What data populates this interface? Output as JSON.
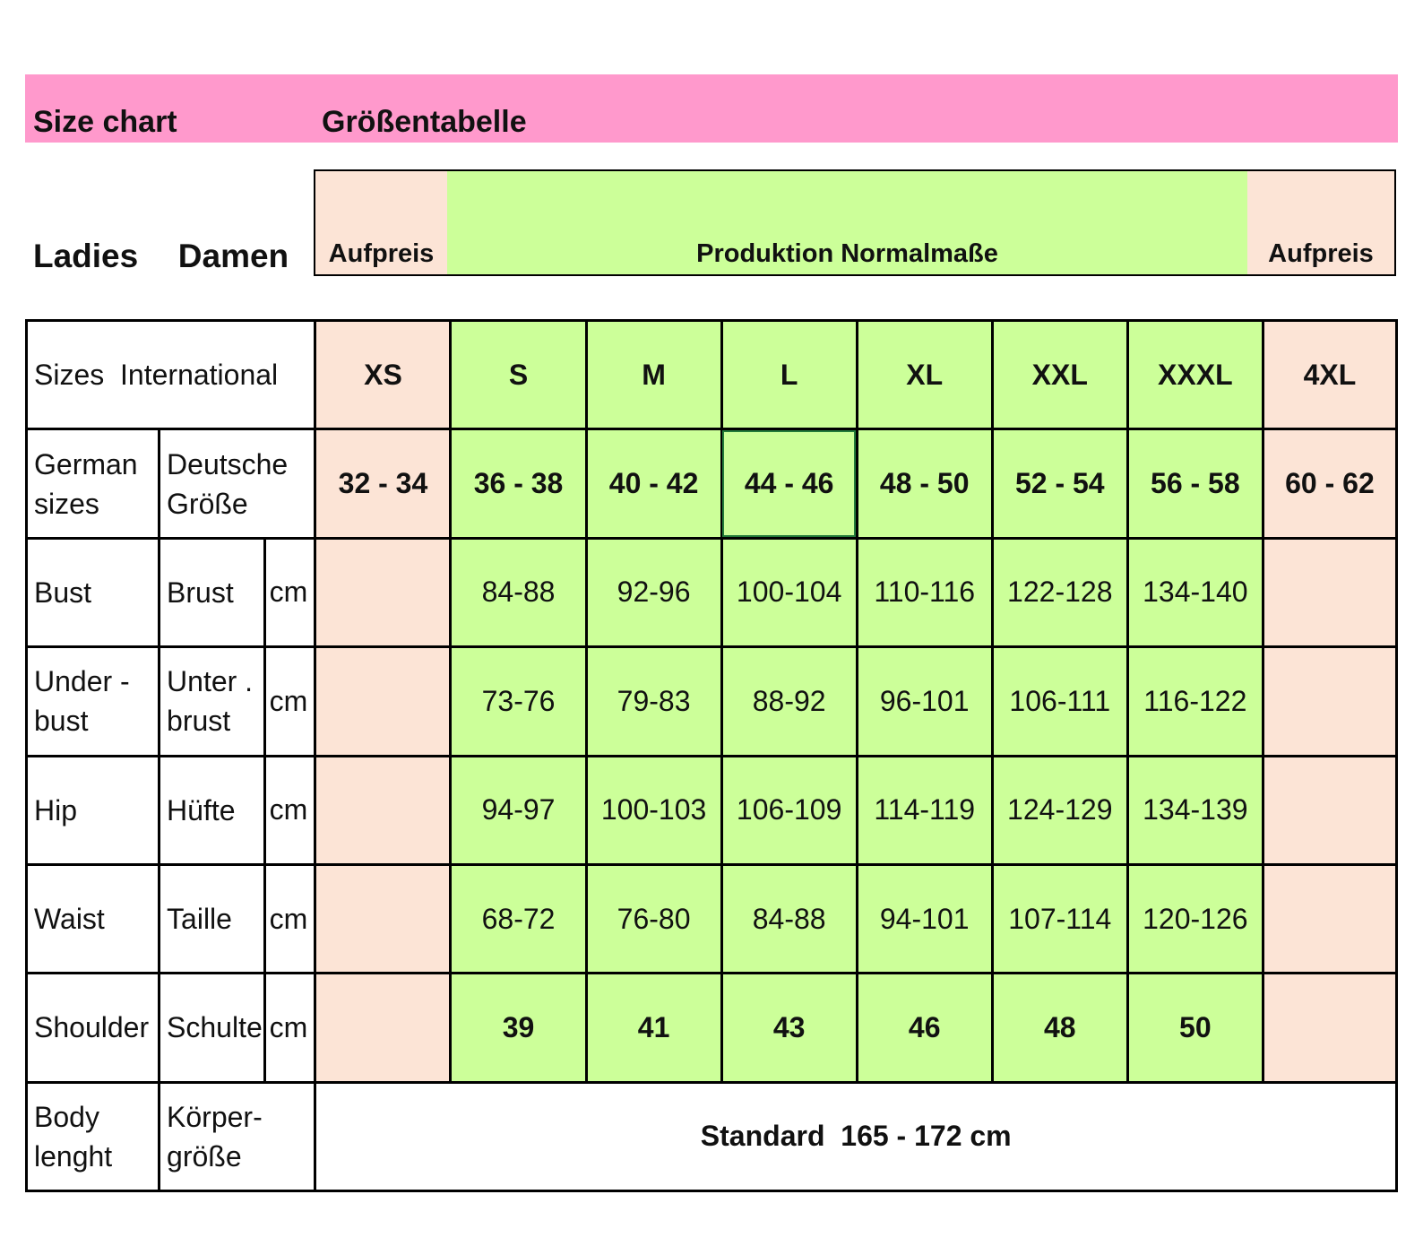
{
  "banner": {
    "title_en": "Size chart",
    "title_de": "Größentabelle"
  },
  "category": {
    "label": "Ladies  Damen"
  },
  "header_bands": {
    "left": "Aufpreis",
    "center": "Produktion Normalmaße",
    "right": "Aufpreis"
  },
  "table": {
    "sizes_label": "Sizes  International",
    "sizes": [
      "XS",
      "S",
      "M",
      "L",
      "XL",
      "XXL",
      "XXXL",
      "4XL"
    ],
    "german": {
      "label_en": "German sizes",
      "label_de": "Deutsche Größe",
      "values": [
        "32 - 34",
        "36 - 38",
        "40 - 42",
        "44 - 46",
        "48 - 50",
        "52 - 54",
        "56 - 58",
        "60 - 62"
      ]
    },
    "rows": [
      {
        "en": "Bust",
        "de": "Brust",
        "unit": "cm",
        "values": [
          "",
          "84-88",
          "92-96",
          "100-104",
          "110-116",
          "122-128",
          "134-140",
          ""
        ]
      },
      {
        "en": "Under  - bust",
        "de": "Unter  . brust",
        "unit": "cm",
        "values": [
          "",
          "73-76",
          "79-83",
          "88-92",
          "96-101",
          "106-111",
          "116-122",
          ""
        ]
      },
      {
        "en": "Hip",
        "de": "Hüfte",
        "unit": "cm",
        "values": [
          "",
          "94-97",
          "100-103",
          "106-109",
          "114-119",
          "124-129",
          "134-139",
          ""
        ]
      },
      {
        "en": "Waist",
        "de": "Taille",
        "unit": "cm",
        "values": [
          "",
          "68-72",
          "76-80",
          "84-88",
          "94-101",
          "107-114",
          "120-126",
          ""
        ]
      },
      {
        "en": "Shoulder",
        "de": "Schulte",
        "unit": "cm",
        "values": [
          "",
          "39",
          "41",
          "43",
          "46",
          "48",
          "50",
          ""
        ]
      }
    ],
    "body_length": {
      "en": "Body lenght",
      "de": "Körper- größe",
      "value": "Standard  165 - 172 cm"
    }
  },
  "colors": {
    "banner": "#ff99cc",
    "surcharge": "#fce4d6",
    "standard": "#ccff99",
    "selection": "#227a3a"
  }
}
